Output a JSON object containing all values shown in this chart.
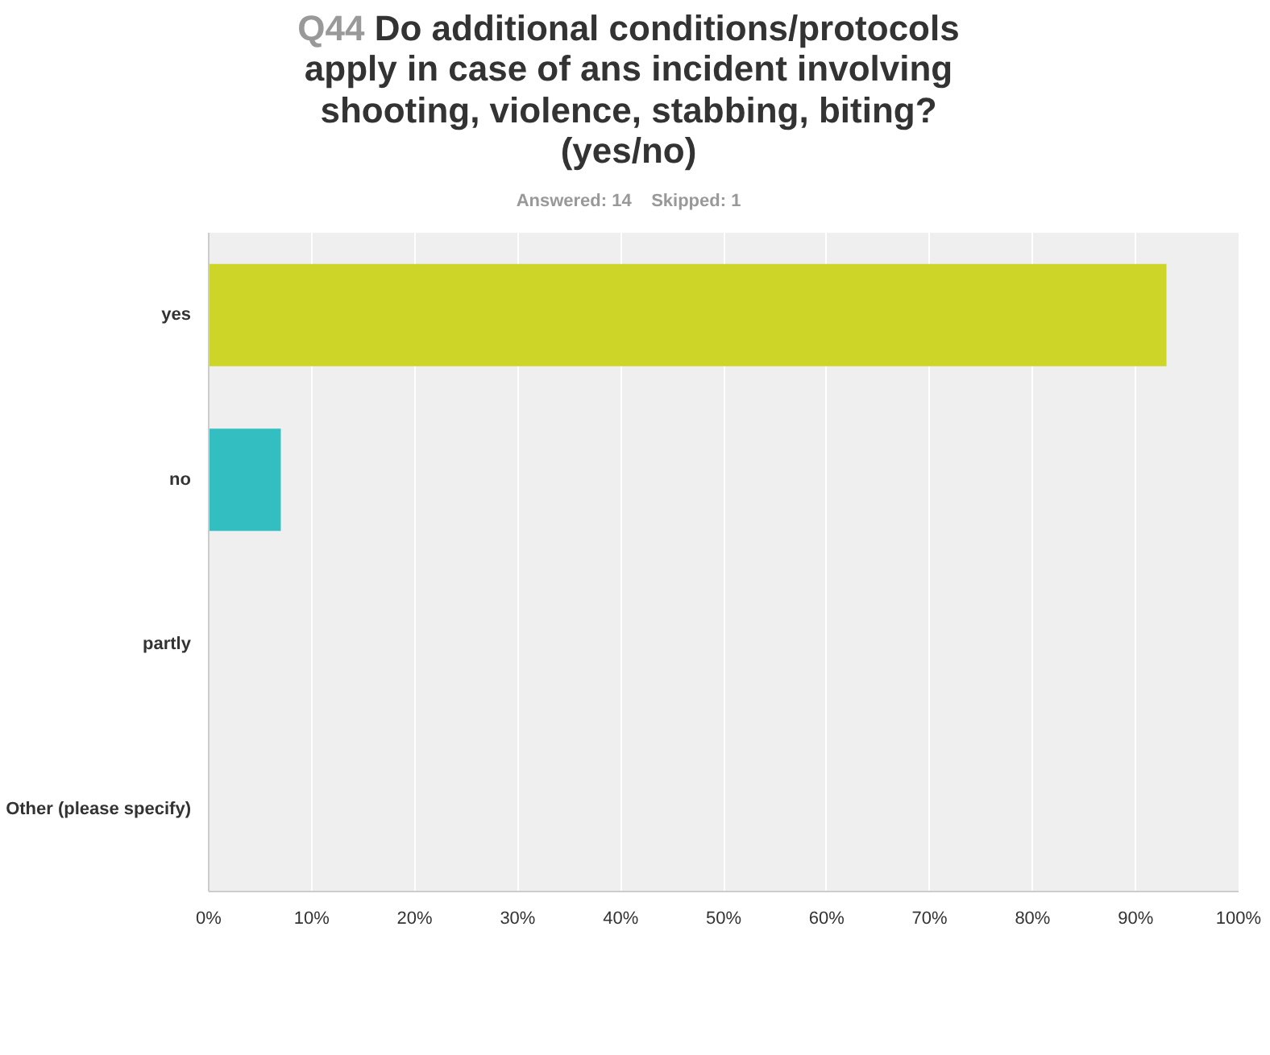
{
  "chart_data": {
    "type": "bar",
    "orientation": "horizontal",
    "title": "Q44 Do additional conditions/protocols apply in case of ans incident involving shooting, violence, stabbing, biting? (yes/no)",
    "subtitle": "Answered: 14    Skipped: 1",
    "categories": [
      "yes",
      "no",
      "partly",
      "Other (please specify)"
    ],
    "values": [
      93,
      7,
      0,
      0
    ],
    "colors": [
      "#cdd628",
      "#33bfc1",
      "#33bfc1",
      "#33bfc1"
    ],
    "xlim": [
      0,
      100
    ],
    "xticks": [
      {
        "value": 0,
        "label": "0%"
      },
      {
        "value": 10,
        "label": "10%"
      },
      {
        "value": 20,
        "label": "20%"
      },
      {
        "value": 30,
        "label": "30%"
      },
      {
        "value": 40,
        "label": "40%"
      },
      {
        "value": 50,
        "label": "50%"
      },
      {
        "value": 60,
        "label": "60%"
      },
      {
        "value": 70,
        "label": "70%"
      },
      {
        "value": 80,
        "label": "80%"
      },
      {
        "value": 90,
        "label": "90%"
      },
      {
        "value": 100,
        "label": "100%"
      }
    ],
    "grid": "x"
  }
}
